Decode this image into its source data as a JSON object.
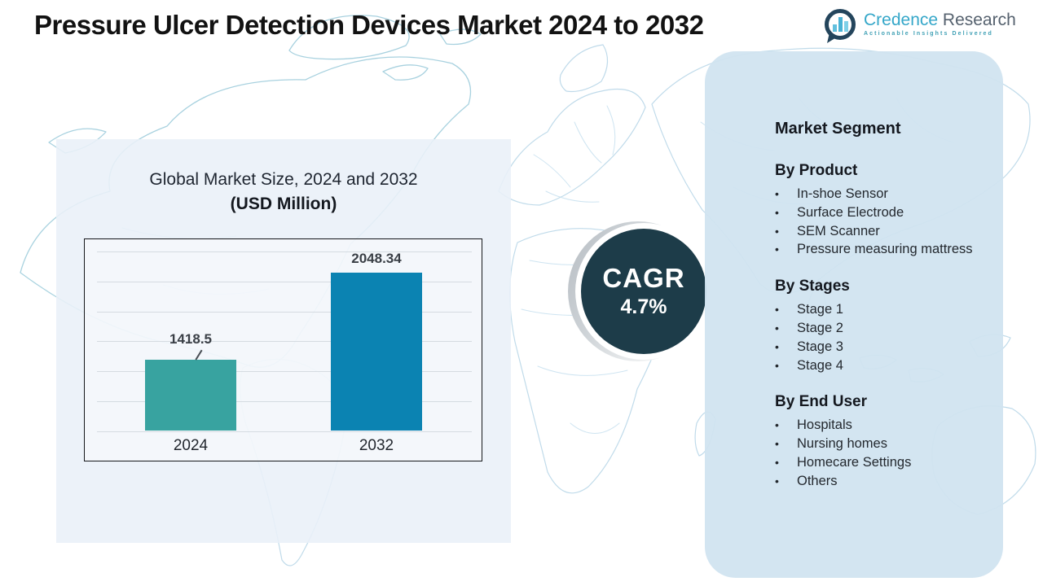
{
  "header": {
    "title": "Pressure Ulcer Detection Devices Market 2024 to 2032",
    "logo": {
      "brand_primary": "Credence",
      "brand_secondary": "Research",
      "tagline": "Actionable Insights Delivered"
    }
  },
  "chart": {
    "title_line1": "Global Market Size, 2024 and 2032",
    "title_line2": "(USD Million)"
  },
  "chart_data": {
    "type": "bar",
    "categories": [
      "2024",
      "2032"
    ],
    "values": [
      1418.5,
      2048.34
    ],
    "value_labels": [
      "1418.5",
      "2048.34"
    ],
    "title": "Global Market Size, 2024 and 2032 (USD Million)",
    "xlabel": "",
    "ylabel": "",
    "ylim": [
      900,
      2300
    ],
    "grid": true,
    "gridline_count": 7,
    "legend_position": "none",
    "bar_colors": [
      "#38a3a0",
      "#0b83b2"
    ]
  },
  "cagr": {
    "label": "CAGR",
    "value": "4.7%"
  },
  "segments": {
    "title": "Market Segment",
    "groups": [
      {
        "heading": "By Product",
        "items": [
          "In-shoe Sensor",
          "Surface Electrode",
          "SEM Scanner",
          "Pressure measuring mattress"
        ]
      },
      {
        "heading": "By Stages",
        "items": [
          "Stage 1",
          "Stage 2",
          "Stage 3",
          "Stage 4"
        ]
      },
      {
        "heading": "By End User",
        "items": [
          "Hospitals",
          "Nursing homes",
          "Homecare Settings",
          "Others"
        ]
      }
    ]
  },
  "colors": {
    "bar_2024": "#38a3a0",
    "bar_2032": "#0b83b2",
    "cagr_circle": "#1d3c49",
    "chart_panel_bg": "#e9f0f8",
    "segment_panel_bg": "#d0e3f0",
    "map_line": "#b9d7e8",
    "map_line_teal": "#9fcddc",
    "logo_teal": "#35a7c9",
    "logo_gray": "#55616e",
    "logo_navy": "#24455c"
  }
}
